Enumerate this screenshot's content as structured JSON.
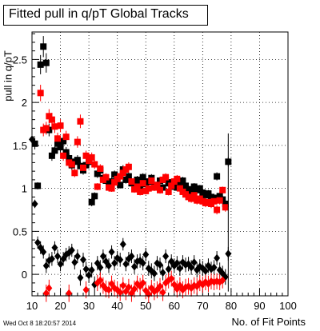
{
  "chart_data": {
    "type": "scatter",
    "title": "Fitted pull in q/pT  Global Tracks",
    "xlabel": "No. of Fit Points",
    "ylabel": "pull in q/pT",
    "xlim": [
      10,
      100
    ],
    "ylim": [
      -0.25,
      2.82
    ],
    "x_ticks": [
      10,
      20,
      30,
      40,
      50,
      60,
      70,
      80,
      90,
      100
    ],
    "y_ticks": [
      0,
      0.5,
      1,
      1.5,
      2,
      2.5
    ],
    "y_tick_labels": [
      "0",
      "0.5",
      "1",
      "1.5",
      "2",
      "2.5"
    ],
    "grid": true,
    "series": [
      {
        "marker": "square",
        "color": "#000000",
        "points": [
          [
            11,
            1.52
          ],
          [
            12,
            1.03
          ],
          [
            13,
            2.44
          ],
          [
            14,
            2.65
          ],
          [
            15,
            2.46
          ],
          [
            16,
            1.68
          ],
          [
            17,
            1.38
          ],
          [
            18,
            1.44
          ],
          [
            19,
            1.52
          ],
          [
            20,
            1.48
          ],
          [
            21,
            1.55
          ],
          [
            22,
            1.42
          ],
          [
            23,
            1.35
          ],
          [
            24,
            1.27
          ],
          [
            25,
            1.31
          ],
          [
            26,
            1.33
          ],
          [
            27,
            1.26
          ],
          [
            28,
            1.21
          ],
          [
            29,
            1.27
          ],
          [
            30,
            1.31
          ],
          [
            31,
            0.84
          ],
          [
            32,
            0.91
          ],
          [
            33,
            1.17
          ],
          [
            34,
            1.21
          ],
          [
            35,
            1.12
          ],
          [
            36,
            1.09
          ],
          [
            37,
            1.07
          ],
          [
            38,
            1.08
          ],
          [
            39,
            1.16
          ],
          [
            40,
            1.13
          ],
          [
            41,
            1.04
          ],
          [
            42,
            1.22
          ],
          [
            43,
            1.1
          ],
          [
            44,
            1.14
          ],
          [
            45,
            1.06
          ],
          [
            46,
            1.03
          ],
          [
            47,
            1.1
          ],
          [
            48,
            1.03
          ],
          [
            49,
            1.13
          ],
          [
            50,
            1.05
          ],
          [
            51,
            1.08
          ],
          [
            52,
            1.12
          ],
          [
            53,
            1.04
          ],
          [
            54,
            1.02
          ],
          [
            55,
            1.09
          ],
          [
            56,
            1.01
          ],
          [
            57,
            1.1
          ],
          [
            58,
            1.06
          ],
          [
            59,
            1.07
          ],
          [
            60,
            1.02
          ],
          [
            61,
            1.01
          ],
          [
            62,
            1.05
          ],
          [
            63,
            1.09
          ],
          [
            64,
            1.03
          ],
          [
            65,
            0.99
          ],
          [
            66,
            0.95
          ],
          [
            67,
            1.02
          ],
          [
            68,
            0.98
          ],
          [
            69,
            1.0
          ],
          [
            70,
            0.95
          ],
          [
            71,
            0.92
          ],
          [
            72,
            0.94
          ],
          [
            73,
            0.9
          ],
          [
            74,
            0.89
          ],
          [
            75,
            1.14
          ],
          [
            76,
            0.91
          ],
          [
            77,
            0.87
          ],
          [
            78,
            0.82
          ],
          [
            79,
            1.31
          ]
        ]
      },
      {
        "marker": "square",
        "color": "#ff0000",
        "points": [
          [
            13,
            2.11
          ],
          [
            14,
            1.68
          ],
          [
            15,
            1.7
          ],
          [
            16,
            1.84
          ],
          [
            17,
            1.8
          ],
          [
            18,
            1.72
          ],
          [
            19,
            1.58
          ],
          [
            20,
            1.73
          ],
          [
            21,
            1.38
          ],
          [
            22,
            1.6
          ],
          [
            23,
            1.3
          ],
          [
            24,
            1.28
          ],
          [
            25,
            1.18
          ],
          [
            26,
            1.54
          ],
          [
            27,
            1.78
          ],
          [
            28,
            1.24
          ],
          [
            29,
            1.38
          ],
          [
            30,
            1.32
          ],
          [
            31,
            1.36
          ],
          [
            32,
            1.28
          ],
          [
            33,
            1.02
          ],
          [
            34,
            1.23
          ],
          [
            35,
            1.1
          ],
          [
            36,
            1.13
          ],
          [
            37,
            1.01
          ],
          [
            38,
            1.0
          ],
          [
            39,
            1.07
          ],
          [
            40,
            1.11
          ],
          [
            41,
            1.14
          ],
          [
            42,
            1.18
          ],
          [
            43,
            1.22
          ],
          [
            44,
            1.25
          ],
          [
            45,
            1.08
          ],
          [
            46,
            0.99
          ],
          [
            47,
            1.02
          ],
          [
            48,
            0.96
          ],
          [
            49,
            1.06
          ],
          [
            50,
            0.97
          ],
          [
            51,
            1.0
          ],
          [
            52,
            1.09
          ],
          [
            53,
            1.01
          ],
          [
            54,
            1.04
          ],
          [
            55,
            0.98
          ],
          [
            56,
            1.1
          ],
          [
            57,
            1.13
          ],
          [
            58,
            0.96
          ],
          [
            59,
            1.03
          ],
          [
            60,
            1.08
          ],
          [
            61,
            1.11
          ],
          [
            62,
            1.0
          ],
          [
            63,
            0.96
          ],
          [
            64,
            0.93
          ],
          [
            65,
            0.9
          ],
          [
            66,
            0.88
          ],
          [
            67,
            0.92
          ],
          [
            68,
            0.86
          ],
          [
            69,
            0.88
          ],
          [
            70,
            0.85
          ],
          [
            71,
            0.83
          ],
          [
            72,
            0.84
          ],
          [
            73,
            0.82
          ],
          [
            74,
            0.85
          ],
          [
            75,
            0.75
          ],
          [
            76,
            0.86
          ],
          [
            77,
            0.98
          ],
          [
            78,
            0.78
          ]
        ]
      },
      {
        "marker": "diamond",
        "color": "#000000",
        "points": [
          [
            10,
            1.57
          ],
          [
            11,
            0.82
          ],
          [
            12,
            0.37
          ],
          [
            13,
            0.31
          ],
          [
            14,
            0.26
          ],
          [
            15,
            0.1
          ],
          [
            16,
            0.16
          ],
          [
            17,
            0.18
          ],
          [
            18,
            0.31
          ],
          [
            19,
            0.21
          ],
          [
            20,
            0.12
          ],
          [
            21,
            0.18
          ],
          [
            22,
            0.23
          ],
          [
            23,
            0.25
          ],
          [
            24,
            0.28
          ],
          [
            25,
            0.14
          ],
          [
            26,
            0.21
          ],
          [
            27,
            -0.04
          ],
          [
            28,
            0.17
          ],
          [
            29,
            0.06
          ],
          [
            30,
            -0.01
          ],
          [
            31,
            0.05
          ],
          [
            32,
            -0.12
          ],
          [
            33,
            0.13
          ],
          [
            34,
            0.08
          ],
          [
            35,
            0.21
          ],
          [
            36,
            0.15
          ],
          [
            37,
            0.1
          ],
          [
            38,
            0.26
          ],
          [
            39,
            0.13
          ],
          [
            40,
            0.19
          ],
          [
            41,
            0.17
          ],
          [
            42,
            0.35
          ],
          [
            43,
            0.12
          ],
          [
            44,
            0.18
          ],
          [
            45,
            0.21
          ],
          [
            46,
            0.09
          ],
          [
            47,
            0.15
          ],
          [
            48,
            0.16
          ],
          [
            49,
            0.13
          ],
          [
            50,
            0.23
          ],
          [
            51,
            0.07
          ],
          [
            52,
            0.04
          ],
          [
            53,
            0.01
          ],
          [
            54,
            0.13
          ],
          [
            55,
            0.11
          ],
          [
            56,
            0.02
          ],
          [
            57,
            0.21
          ],
          [
            58,
            0.06
          ],
          [
            59,
            0.15
          ],
          [
            60,
            0.1
          ],
          [
            61,
            0.13
          ],
          [
            62,
            0.07
          ],
          [
            63,
            0.14
          ],
          [
            64,
            0.11
          ],
          [
            65,
            0.12
          ],
          [
            66,
            0.08
          ],
          [
            67,
            0.14
          ],
          [
            68,
            0.05
          ],
          [
            69,
            0.09
          ],
          [
            70,
            0.07
          ],
          [
            71,
            0.04
          ],
          [
            72,
            0.1
          ],
          [
            73,
            0.06
          ],
          [
            74,
            0.08
          ],
          [
            75,
            0.19
          ],
          [
            76,
            0.05
          ],
          [
            77,
            0.01
          ],
          [
            78,
            -0.03
          ],
          [
            79,
            0.24
          ]
        ]
      },
      {
        "marker": "diamond",
        "color": "#ff0000",
        "points": [
          [
            15,
            -0.22
          ],
          [
            16,
            -0.16
          ],
          [
            23,
            -0.22
          ],
          [
            29,
            -0.18
          ],
          [
            33,
            -0.1
          ],
          [
            34,
            -0.07
          ],
          [
            35,
            -0.13
          ],
          [
            36,
            -0.17
          ],
          [
            37,
            -0.18
          ],
          [
            38,
            -0.11
          ],
          [
            39,
            -0.16
          ],
          [
            40,
            -0.18
          ],
          [
            41,
            -0.21
          ],
          [
            42,
            -0.13
          ],
          [
            43,
            -0.2
          ],
          [
            44,
            -0.15
          ],
          [
            45,
            -0.22
          ],
          [
            46,
            -0.17
          ],
          [
            47,
            -0.11
          ],
          [
            48,
            -0.14
          ],
          [
            49,
            -0.1
          ],
          [
            50,
            -0.19
          ],
          [
            51,
            -0.23
          ],
          [
            52,
            -0.16
          ],
          [
            53,
            -0.2
          ],
          [
            54,
            -0.18
          ],
          [
            55,
            -0.14
          ],
          [
            56,
            -0.21
          ],
          [
            57,
            -0.1
          ],
          [
            58,
            -0.07
          ],
          [
            59,
            -0.05
          ],
          [
            60,
            -0.12
          ],
          [
            61,
            -0.17
          ],
          [
            62,
            -0.13
          ],
          [
            63,
            -0.18
          ],
          [
            64,
            -0.15
          ],
          [
            65,
            -0.14
          ],
          [
            66,
            -0.16
          ],
          [
            67,
            -0.13
          ],
          [
            68,
            -0.14
          ],
          [
            69,
            -0.1
          ],
          [
            70,
            -0.12
          ],
          [
            71,
            -0.09
          ],
          [
            72,
            -0.11
          ],
          [
            73,
            -0.08
          ],
          [
            74,
            -0.09
          ],
          [
            75,
            -0.08
          ],
          [
            76,
            -0.09
          ],
          [
            77,
            -0.07
          ]
        ]
      }
    ]
  },
  "footer": {
    "timestamp": "Wed Oct  8 18:20:57 2014"
  }
}
